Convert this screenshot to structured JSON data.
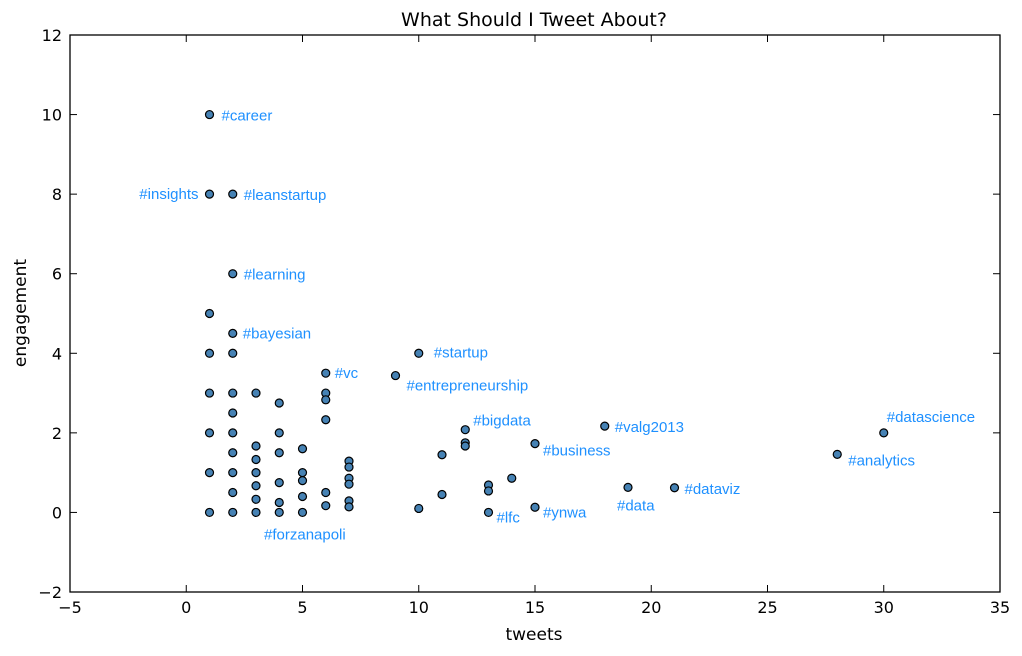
{
  "chart_data": {
    "type": "scatter",
    "title": "What Should I Tweet About?",
    "xlabel": "tweets",
    "ylabel": "engagement",
    "xlim": [
      -5,
      35
    ],
    "ylim": [
      -2,
      12
    ],
    "xticks": [
      -5,
      0,
      5,
      10,
      15,
      20,
      25,
      30,
      35
    ],
    "yticks": [
      -2,
      0,
      2,
      4,
      6,
      8,
      10,
      12
    ],
    "xtick_labels": [
      "−5",
      "0",
      "5",
      "10",
      "15",
      "20",
      "25",
      "30",
      "35"
    ],
    "ytick_labels": [
      "−2",
      "0",
      "2",
      "4",
      "6",
      "8",
      "10",
      "12"
    ],
    "grid": false,
    "marker_color": "#4682b4",
    "annotation_color": "#1e90ff",
    "points": [
      [
        1,
        10
      ],
      [
        1,
        8
      ],
      [
        1,
        5
      ],
      [
        1,
        4
      ],
      [
        1,
        3
      ],
      [
        1,
        2
      ],
      [
        1,
        1
      ],
      [
        1,
        0
      ],
      [
        2,
        8
      ],
      [
        2,
        6
      ],
      [
        2,
        4.5
      ],
      [
        2,
        4
      ],
      [
        2,
        3
      ],
      [
        2,
        2.5
      ],
      [
        2,
        2
      ],
      [
        2,
        1.5
      ],
      [
        2,
        1
      ],
      [
        2,
        0.5
      ],
      [
        2,
        0
      ],
      [
        3,
        3
      ],
      [
        3,
        1.67
      ],
      [
        3,
        1.33
      ],
      [
        3,
        1
      ],
      [
        3,
        0.67
      ],
      [
        3,
        0.33
      ],
      [
        3,
        0
      ],
      [
        4,
        2.75
      ],
      [
        4,
        2
      ],
      [
        4,
        1.5
      ],
      [
        4,
        0.75
      ],
      [
        4,
        0.25
      ],
      [
        4,
        0
      ],
      [
        5,
        1.6
      ],
      [
        5,
        1
      ],
      [
        5,
        0.8
      ],
      [
        5,
        0.4
      ],
      [
        5,
        0
      ],
      [
        6,
        3.5
      ],
      [
        6,
        3
      ],
      [
        6,
        2.83
      ],
      [
        6,
        2.33
      ],
      [
        6,
        0.5
      ],
      [
        6,
        0.17
      ],
      [
        7,
        1.29
      ],
      [
        7,
        1.14
      ],
      [
        7,
        0.86
      ],
      [
        7,
        0.71
      ],
      [
        7,
        0.29
      ],
      [
        7,
        0.14
      ],
      [
        9,
        3.44
      ],
      [
        10,
        4
      ],
      [
        10,
        0.1
      ],
      [
        11,
        1.45
      ],
      [
        11,
        0.45
      ],
      [
        12,
        2.08
      ],
      [
        12,
        1.75
      ],
      [
        12,
        1.67
      ],
      [
        13,
        0.69
      ],
      [
        13,
        0.54
      ],
      [
        13,
        0
      ],
      [
        14,
        0.86
      ],
      [
        15,
        1.73
      ],
      [
        15,
        0.13
      ],
      [
        18,
        2.17
      ],
      [
        19,
        0.63
      ],
      [
        21,
        0.62
      ],
      [
        28,
        1.46
      ],
      [
        30,
        2
      ]
    ],
    "annotations": [
      {
        "text": "#career",
        "x": 1,
        "y": 10
      },
      {
        "text": "#insights",
        "x": 1,
        "y": 8
      },
      {
        "text": "#leanstartup",
        "x": 2,
        "y": 8
      },
      {
        "text": "#learning",
        "x": 2,
        "y": 6
      },
      {
        "text": "#bayesian",
        "x": 2,
        "y": 4.5
      },
      {
        "text": "#vc",
        "x": 6,
        "y": 3.5
      },
      {
        "text": "#startup",
        "x": 10,
        "y": 4
      },
      {
        "text": "#entrepreneurship",
        "x": 9,
        "y": 3.44
      },
      {
        "text": "#bigdata",
        "x": 12,
        "y": 2.08
      },
      {
        "text": "#business",
        "x": 15,
        "y": 1.73
      },
      {
        "text": "#valg2013",
        "x": 18,
        "y": 2.17
      },
      {
        "text": "#datascience",
        "x": 30,
        "y": 2
      },
      {
        "text": "#analytics",
        "x": 28,
        "y": 1.46
      },
      {
        "text": "#dataviz",
        "x": 21,
        "y": 0.62
      },
      {
        "text": "#data",
        "x": 19,
        "y": 0.63
      },
      {
        "text": "#ynwa",
        "x": 15,
        "y": 0.13
      },
      {
        "text": "#lfc",
        "x": 13,
        "y": 0
      },
      {
        "text": "#forzanapoli",
        "x": 3,
        "y": 0
      }
    ]
  }
}
